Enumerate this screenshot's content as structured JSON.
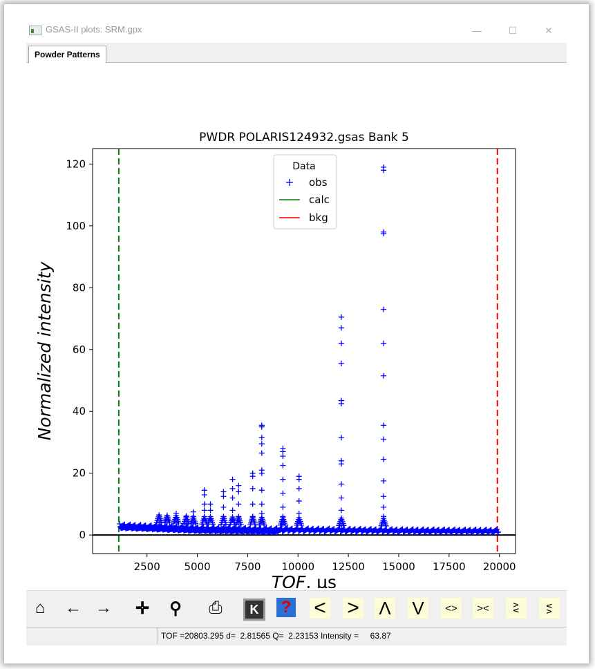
{
  "window": {
    "title": "GSAS-II plots: SRM.gpx",
    "minimize": "—",
    "maximize": "☐",
    "close": "✕"
  },
  "tabs": [
    {
      "label": "Powder Patterns",
      "active": true
    }
  ],
  "chart_data": {
    "type": "scatter",
    "title": "PWDR POLARIS124932.gsas Bank 5",
    "xlabel_italic": "TOF",
    "xlabel_unit": ", µs",
    "ylabel": "Normalized intensity",
    "xlim": [
      -200,
      20800
    ],
    "ylim": [
      -6,
      125
    ],
    "xticks": [
      2500,
      5000,
      7500,
      10000,
      12500,
      15000,
      17500,
      20000
    ],
    "yticks": [
      0,
      20,
      40,
      60,
      80,
      100,
      120
    ],
    "legend": {
      "title": "Data",
      "placement": "top-center",
      "entries": [
        {
          "name": "obs",
          "color": "#0000ff",
          "marker": "+"
        },
        {
          "name": "calc",
          "color": "#008000",
          "marker": "line"
        },
        {
          "name": "bkg",
          "color": "#ff0000",
          "marker": "line"
        }
      ]
    },
    "limit_lines": [
      {
        "x": 1100,
        "color": "#008000",
        "style": "dashed"
      },
      {
        "x": 19900,
        "color": "#ff0000",
        "style": "dashed"
      }
    ],
    "zero_line": 0,
    "baseline": [
      [
        1100,
        2.5
      ],
      [
        3000,
        2.0
      ],
      [
        5000,
        1.5
      ],
      [
        8000,
        1.2
      ],
      [
        12000,
        1.0
      ],
      [
        16000,
        0.8
      ],
      [
        20000,
        0.7
      ]
    ],
    "peaks": [
      {
        "x": 14250,
        "values": [
          119,
          118,
          98,
          97.5,
          73,
          62,
          51.5,
          35.5,
          31,
          24.5,
          17.5,
          12.5,
          9,
          6,
          4
        ]
      },
      {
        "x": 12150,
        "values": [
          70.5,
          67,
          62,
          55.5,
          43.5,
          42.5,
          31.5,
          24,
          23,
          16.5,
          12,
          8,
          5,
          3
        ]
      },
      {
        "x": 8200,
        "values": [
          35.5,
          35,
          31.5,
          29.5,
          26.5,
          21,
          20,
          14.5,
          10,
          7,
          4
        ]
      },
      {
        "x": 9250,
        "values": [
          28,
          27,
          25.5,
          22.5,
          18,
          13.5,
          9,
          6,
          3.5
        ]
      },
      {
        "x": 10050,
        "values": [
          19,
          18,
          15,
          11,
          7,
          4
        ]
      },
      {
        "x": 7750,
        "values": [
          20,
          19,
          15,
          10,
          6
        ]
      },
      {
        "x": 7050,
        "values": [
          16,
          14,
          10,
          6,
          4
        ]
      },
      {
        "x": 6750,
        "values": [
          18,
          15,
          12,
          8,
          5
        ]
      },
      {
        "x": 6300,
        "values": [
          14,
          12.5,
          9,
          6
        ]
      },
      {
        "x": 5650,
        "values": [
          10,
          8,
          5
        ]
      },
      {
        "x": 5350,
        "values": [
          14.5,
          13,
          10,
          8,
          5
        ]
      },
      {
        "x": 4800,
        "values": [
          7.5,
          6,
          4
        ]
      },
      {
        "x": 4450,
        "values": [
          6,
          5,
          3.5
        ]
      },
      {
        "x": 3950,
        "values": [
          7,
          5.5,
          4
        ]
      },
      {
        "x": 3500,
        "values": [
          5,
          4
        ]
      },
      {
        "x": 3100,
        "values": [
          4,
          3.5
        ]
      }
    ]
  },
  "toolbar": [
    {
      "id": "home",
      "name": "home-icon",
      "glyph": "⌂"
    },
    {
      "id": "back",
      "name": "back-arrow-icon",
      "glyph": "←"
    },
    {
      "id": "forward",
      "name": "forward-arrow-icon",
      "glyph": "→"
    },
    {
      "id": "pan",
      "name": "pan-icon",
      "glyph": "✛"
    },
    {
      "id": "zoom",
      "name": "zoom-icon",
      "glyph": "⚲"
    },
    {
      "id": "save",
      "name": "save-icon",
      "glyph": "⎙"
    },
    {
      "id": "key",
      "name": "key-press-icon",
      "glyph": "K"
    },
    {
      "id": "help",
      "name": "help-icon",
      "glyph": "?"
    },
    {
      "id": "left",
      "name": "shift-left-icon",
      "glyph": "<"
    },
    {
      "id": "right",
      "name": "shift-right-icon",
      "glyph": ">"
    },
    {
      "id": "up",
      "name": "shift-up-icon",
      "glyph": "Λ"
    },
    {
      "id": "down",
      "name": "shift-down-icon",
      "glyph": "V"
    },
    {
      "id": "xexpand",
      "name": "expand-x-icon",
      "glyph": "<>"
    },
    {
      "id": "xshrink",
      "name": "shrink-x-icon",
      "glyph": "><"
    },
    {
      "id": "yexpand",
      "name": "expand-y-icon",
      "glyph": "ʌ∨"
    },
    {
      "id": "yshrink",
      "name": "shrink-y-icon",
      "glyph": "∨ʌ"
    }
  ],
  "status": {
    "text": "TOF =20803.295 d=  2.81565 Q=  2.23153 Intensity =     63.87"
  }
}
